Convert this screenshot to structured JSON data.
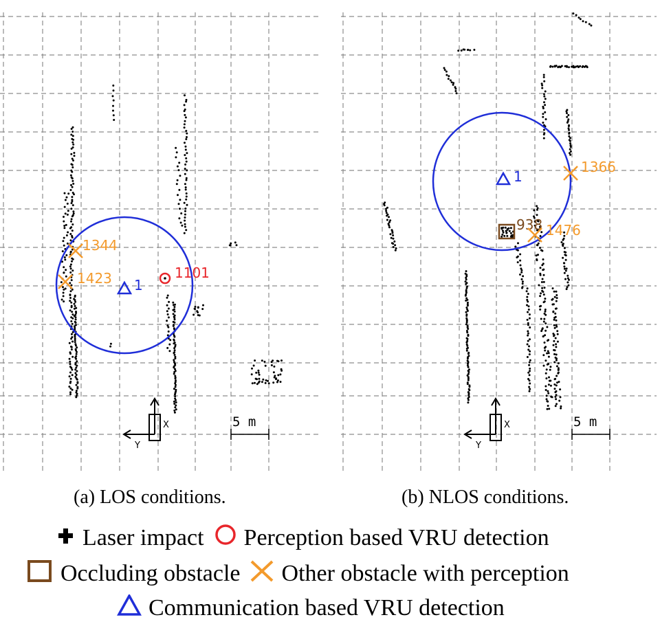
{
  "panels": [
    {
      "id": "los",
      "caption": "(a) LOS conditions.",
      "scale_label": "5 m",
      "axis_x_label": "X",
      "axis_y_label": "Y",
      "comm_detection": {
        "label": "1"
      },
      "perception_detections": [
        {
          "label": "1101"
        }
      ],
      "other_obstacles": [
        {
          "label": "1344"
        },
        {
          "label": "1423"
        }
      ],
      "occluding_obstacles": []
    },
    {
      "id": "nlos",
      "caption": "(b) NLOS conditions.",
      "scale_label": "5 m",
      "axis_x_label": "X",
      "axis_y_label": "Y",
      "comm_detection": {
        "label": "1"
      },
      "perception_detections": [],
      "other_obstacles": [
        {
          "label": "1366"
        },
        {
          "label": "1476"
        }
      ],
      "occluding_obstacles": [
        {
          "label": "938"
        }
      ]
    }
  ],
  "legend": {
    "laser_impact": "Laser impact",
    "perception_vru": "Perception based VRU detection",
    "occluding_obstacle": "Occluding obstacle",
    "other_obstacle": "Other obstacle with perception",
    "communication_vru": "Communication based VRU detection"
  },
  "colors": {
    "laser": "#000000",
    "perception": "#e8262b",
    "occluding": "#7a4a1e",
    "other": "#f39a2c",
    "communication": "#1f2ed8",
    "grid": "#8c8c8c"
  }
}
